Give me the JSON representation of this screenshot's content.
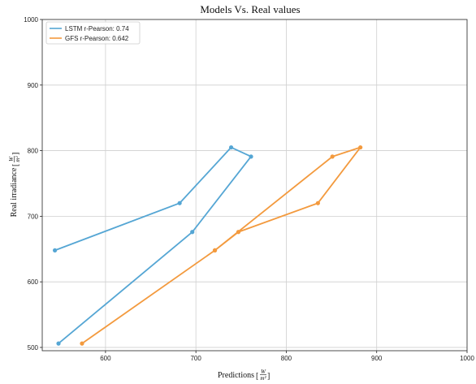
{
  "chart_data": {
    "type": "line",
    "title": "Models Vs. Real values",
    "xlabel": "Predictions",
    "ylabel": "Real irradiance",
    "unit_numerator": "W",
    "unit_denominator": "m²",
    "xlim": [
      530,
      1000
    ],
    "ylim": [
      495,
      1000
    ],
    "xticks": [
      600,
      700,
      800,
      900,
      1000
    ],
    "yticks": [
      500,
      600,
      700,
      800,
      900,
      1000
    ],
    "grid": true,
    "legend_position": "top-left",
    "series": [
      {
        "name": "LSTM r-Pearson: 0.74",
        "color": "#55a6d4",
        "points": [
          [
            544,
            648
          ],
          [
            682,
            720
          ],
          [
            739,
            805
          ],
          [
            761,
            791
          ],
          [
            696,
            676
          ],
          [
            548,
            506
          ]
        ]
      },
      {
        "name": "GFS r-Pearson: 0.642",
        "color": "#f39a3e",
        "points": [
          [
            574,
            506
          ],
          [
            721,
            648
          ],
          [
            747,
            676
          ],
          [
            835,
            720
          ],
          [
            882,
            805
          ],
          [
            851,
            791
          ],
          [
            721,
            648
          ]
        ]
      }
    ]
  }
}
